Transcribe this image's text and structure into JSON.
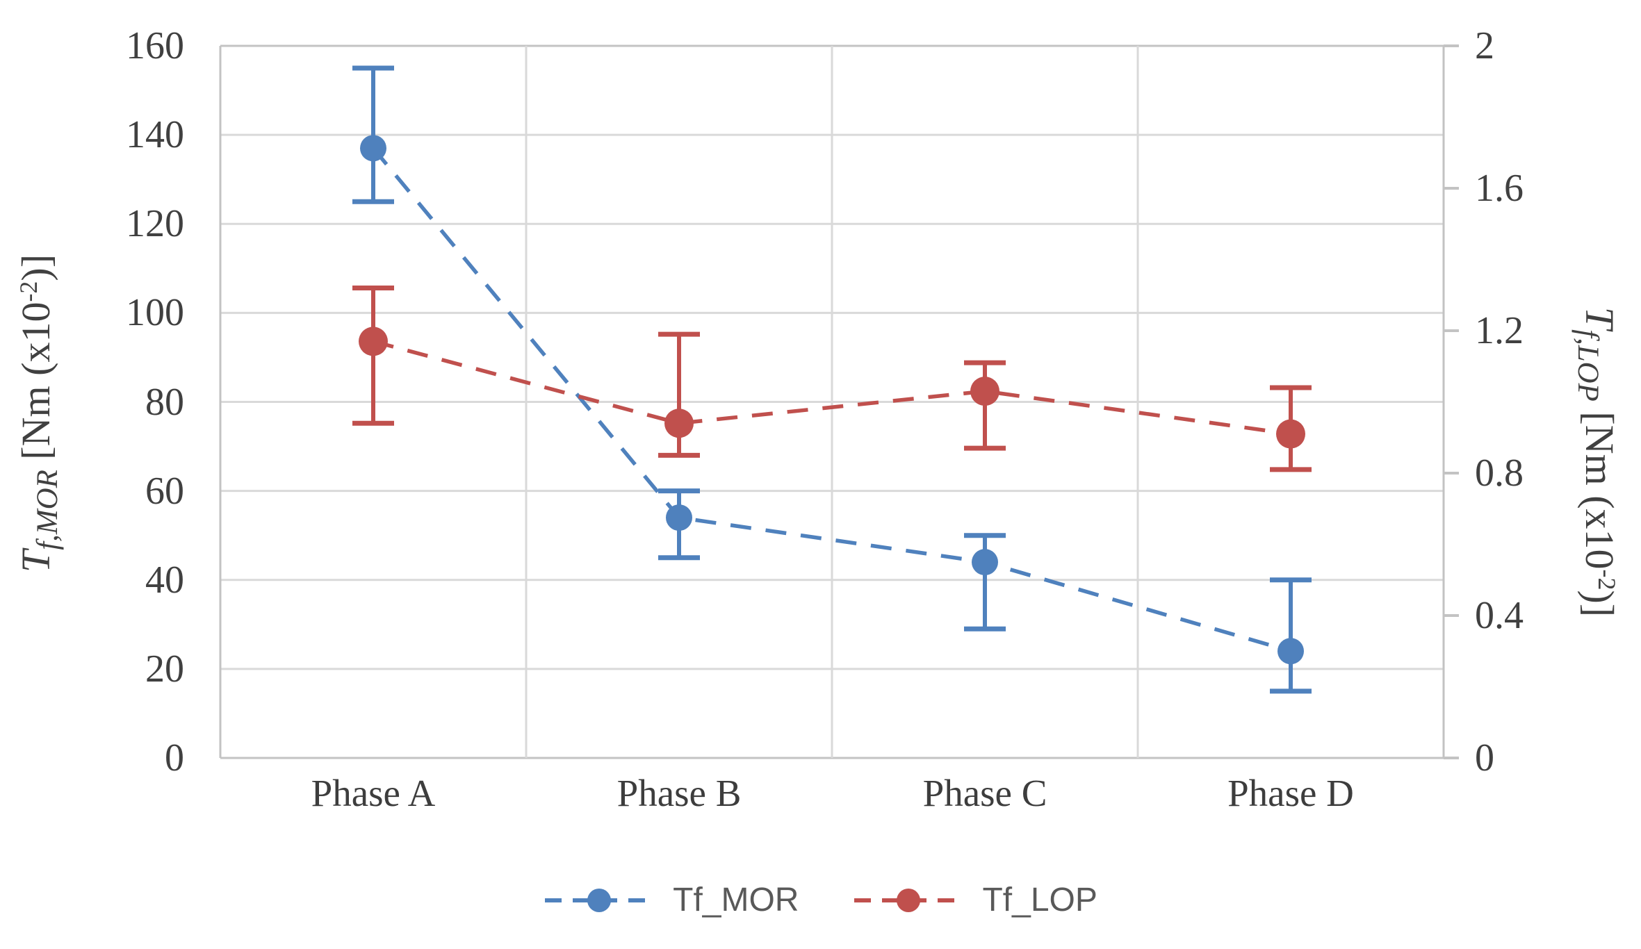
{
  "chart_data": {
    "type": "line",
    "subtype": "dashed-with-markers-and-error-bars",
    "categories": [
      "Phase A",
      "Phase B",
      "Phase C",
      "Phase D"
    ],
    "series": [
      {
        "name": "Tf_MOR",
        "axis": "left",
        "color": "#4F81BD",
        "marker": "circle",
        "marker_radius": 19,
        "line_style": "dashed",
        "values": [
          137,
          54,
          44,
          24
        ],
        "error_low": [
          125,
          45,
          29,
          15
        ],
        "error_high": [
          155,
          60,
          50,
          40
        ]
      },
      {
        "name": "Tf_LOP",
        "axis": "right",
        "color": "#C0504D",
        "marker": "circle",
        "marker_radius": 21,
        "line_style": "dashed",
        "values": [
          1.17,
          0.94,
          1.03,
          0.91
        ],
        "error_low": [
          0.94,
          0.85,
          0.87,
          0.81
        ],
        "error_high": [
          1.32,
          1.19,
          1.11,
          1.04
        ]
      }
    ],
    "left_axis": {
      "min": 0,
      "max": 160,
      "ticks": [
        "160",
        "140",
        "120",
        "100",
        "80",
        "60",
        "40",
        "20",
        "0"
      ],
      "title": {
        "symbol": "T",
        "subscript": "f,MOR",
        "unit_prefix": " [Nm (x10",
        "exponent": "-2",
        "unit_suffix": ")]"
      }
    },
    "right_axis": {
      "min": 0,
      "max": 2,
      "ticks": [
        "2",
        "1.6",
        "1.2",
        "0.8",
        "0.4",
        "0"
      ],
      "title": {
        "symbol": "T",
        "subscript": "f,LOP",
        "unit_prefix": " [Nm (x10",
        "exponent": "-2",
        "unit_suffix": ")]"
      }
    },
    "legend": {
      "position": "bottom",
      "items": [
        {
          "label": "Tf_MOR",
          "color": "#4F81BD"
        },
        {
          "label": "Tf_LOP",
          "color": "#C0504D"
        }
      ]
    },
    "grid": true,
    "colors": {
      "gridline": "#D9D9D9",
      "axis_border": "#C3C3C3",
      "tick_text": "#404040",
      "legend_text": "#595959",
      "background": "#FFFFFF"
    }
  }
}
